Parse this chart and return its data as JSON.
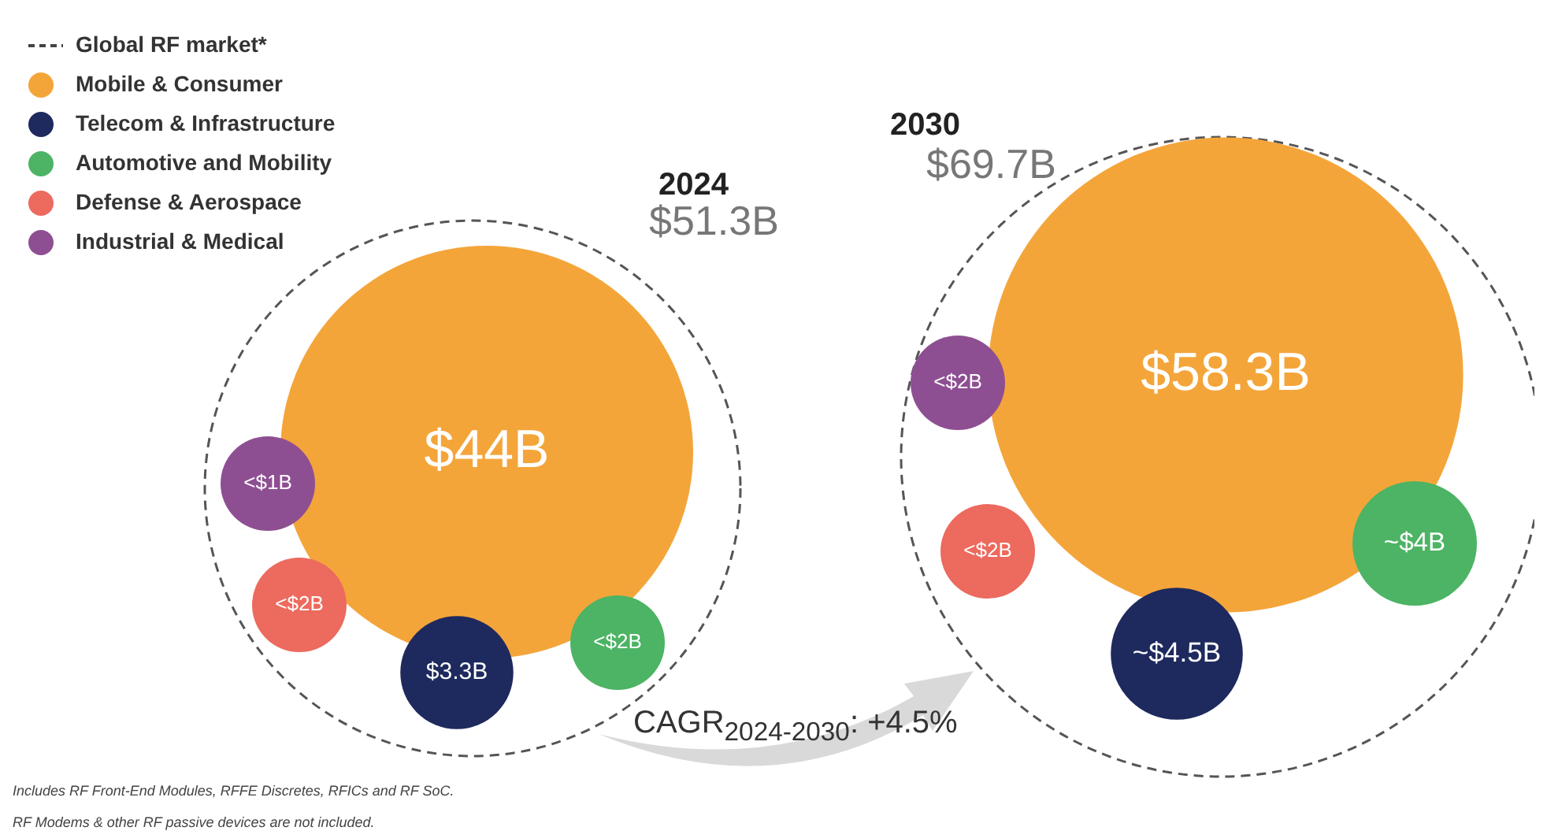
{
  "chart_data": {
    "type": "other",
    "legend": "top left",
    "legend_title": "Global RF market*",
    "categories": [
      "2024",
      "2030"
    ],
    "series": [
      {
        "name": "Mobile & Consumer",
        "color": "#f4a53a",
        "values": [
          44,
          58.3
        ],
        "value_labels": [
          "$44B",
          "$58.3B"
        ]
      },
      {
        "name": "Telecom & Infrastructure",
        "color": "#1e2a5e",
        "values": [
          3.3,
          4.5
        ],
        "value_labels": [
          "$3.3B",
          "~$4.5B"
        ]
      },
      {
        "name": "Automotive and Mobility",
        "color": "#4cb464",
        "values": [
          null,
          4
        ],
        "value_labels": [
          "<$2B",
          "~$4B"
        ]
      },
      {
        "name": "Defense & Aerospace",
        "color": "#ec6a5e",
        "values": [
          null,
          null
        ],
        "value_labels": [
          "<$2B",
          "<$2B"
        ]
      },
      {
        "name": "Industrial & Medical",
        "color": "#8e4f92",
        "values": [
          null,
          null
        ],
        "value_labels": [
          "<$1B",
          "<$2B"
        ]
      }
    ],
    "totals": [
      "$51.3B",
      "$69.7B"
    ],
    "annotations": [
      "CAGR$_{2024-2030}$: +4.5%",
      "Includes RF Front-End Modules, RFFE Discretes, RFICs and RF SoC.",
      "RF Modems & other RF passive devices are not included."
    ]
  }
}
